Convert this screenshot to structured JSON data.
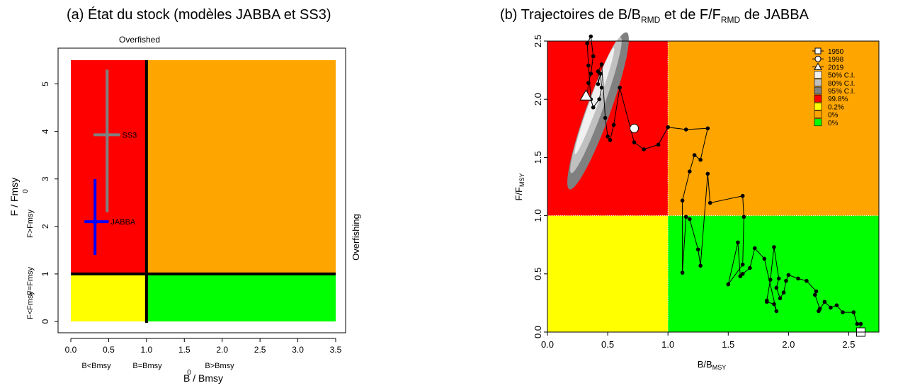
{
  "chart_data": [
    {
      "type": "scatter",
      "panel": "a",
      "title": "(a) État du stock (modèles JABBA et SS3)",
      "xlabel": "B / Bmsy",
      "ylabel": "F / Fmsy",
      "xlim": [
        0,
        3.5
      ],
      "ylim": [
        0,
        5.5
      ],
      "x_ticks": [
        "0.0",
        "0.5",
        "1.0",
        "1.5",
        "2.0",
        "2.5",
        "3.0",
        "3.5"
      ],
      "y_ticks": [
        "0",
        "1",
        "2",
        "3",
        "4",
        "5"
      ],
      "grid": false,
      "top_label": "Overfished",
      "right_label": "Overfishing",
      "x_zone_labels": [
        "B<Bmsy",
        "B=Bmsy",
        "B>Bmsy"
      ],
      "y_zone_labels": [
        "F<Fmsy",
        "F=Fmsy",
        "F>Fmsy"
      ],
      "stray_zero_x": "0",
      "stray_zero_y": "0",
      "quadrants": [
        {
          "x": [
            0,
            1
          ],
          "y": [
            1,
            5.5
          ],
          "color": "#ff0000"
        },
        {
          "x": [
            1,
            3.5
          ],
          "y": [
            1,
            5.5
          ],
          "color": "#ffa500"
        },
        {
          "x": [
            0,
            1
          ],
          "y": [
            0,
            1
          ],
          "color": "#ffff00"
        },
        {
          "x": [
            1,
            3.5
          ],
          "y": [
            0,
            1
          ],
          "color": "#00ff00"
        }
      ],
      "reference_lines": {
        "x": 1,
        "y": 1
      },
      "points": [
        {
          "label": "SS3",
          "x": 0.48,
          "y": 3.93,
          "x_ci": [
            0.3,
            0.65
          ],
          "y_ci": [
            2.3,
            5.3
          ],
          "color": "#808080"
        },
        {
          "label": "JABBA",
          "x": 0.32,
          "y": 2.1,
          "x_ci": [
            0.18,
            0.5
          ],
          "y_ci": [
            1.4,
            3.0
          ],
          "color": "#0000ff"
        }
      ]
    },
    {
      "type": "line",
      "panel": "b",
      "title": "(b) Trajectoires de B/B",
      "title_sub1": "RMD",
      "title_mid": " et de F/F",
      "title_sub2": "RMD",
      "title_end": " de JABBA",
      "xlabel": "B/B",
      "xlabel_sub": "MSY",
      "ylabel": "F/F",
      "ylabel_sub": "MSY",
      "xlim": [
        0,
        2.75
      ],
      "ylim": [
        0,
        2.5
      ],
      "x_ticks": [
        "0.0",
        "0.5",
        "1.0",
        "1.5",
        "2.0",
        "2.5"
      ],
      "y_ticks": [
        "0.0",
        "0.5",
        "1.0",
        "1.5",
        "2.0",
        "2.5"
      ],
      "grid": false,
      "legend_position": "top-right",
      "legend": [
        {
          "label": "1950",
          "marker": "square-line"
        },
        {
          "label": "1998",
          "marker": "circle-line"
        },
        {
          "label": "2019",
          "marker": "triangle-line"
        },
        {
          "label": "50% C.I.",
          "color": "#f0f0f0"
        },
        {
          "label": "80% C.I.",
          "color": "#c0c0c0"
        },
        {
          "label": "95% C.I.",
          "color": "#808080"
        },
        {
          "label": "99.8%",
          "color": "#ff0000"
        },
        {
          "label": "0.2%",
          "color": "#ffff00"
        },
        {
          "label": "0%",
          "color": "#ffa500"
        },
        {
          "label": "0%",
          "color": "#00ff00"
        }
      ],
      "quadrants": [
        {
          "x": [
            0,
            1
          ],
          "y": [
            1,
            2.5
          ],
          "color": "#ff0000"
        },
        {
          "x": [
            1,
            2.75
          ],
          "y": [
            1,
            2.5
          ],
          "color": "#ffa500"
        },
        {
          "x": [
            0,
            1
          ],
          "y": [
            0,
            1
          ],
          "color": "#ffff00"
        },
        {
          "x": [
            1,
            2.75
          ],
          "y": [
            0,
            1
          ],
          "color": "#00ff00"
        }
      ],
      "trajectory": {
        "x": [
          2.58,
          2.6,
          2.57,
          2.54,
          2.45,
          2.4,
          2.35,
          2.3,
          2.25,
          2.26,
          2.22,
          2.23,
          2.15,
          2.08,
          2.0,
          1.98,
          1.96,
          1.93,
          1.9,
          1.92,
          1.88,
          1.85,
          1.82,
          1.82,
          1.88,
          1.9,
          1.8,
          1.72,
          1.68,
          1.62,
          1.6,
          1.58,
          1.5,
          1.62,
          1.63,
          1.62,
          1.35,
          1.33,
          1.27,
          1.25,
          1.18,
          1.15,
          1.12,
          1.12,
          1.18,
          1.22,
          1.27,
          1.33,
          1.15,
          1.0,
          0.92,
          0.8,
          0.72,
          0.6,
          0.55,
          0.52,
          0.5,
          0.48,
          0.45,
          0.42,
          0.42,
          0.44,
          0.45,
          0.43,
          0.38,
          0.36,
          0.34,
          0.33,
          0.36,
          0.38,
          0.36,
          0.34,
          0.33,
          0.32,
          0.33
        ],
        "y": [
          0.0,
          0.07,
          0.07,
          0.17,
          0.17,
          0.23,
          0.21,
          0.26,
          0.18,
          0.2,
          0.32,
          0.35,
          0.44,
          0.46,
          0.49,
          0.44,
          0.34,
          0.29,
          0.38,
          0.46,
          0.73,
          0.45,
          0.27,
          0.26,
          0.24,
          0.18,
          0.63,
          0.72,
          0.55,
          0.5,
          0.48,
          0.77,
          0.41,
          0.58,
          0.99,
          1.17,
          1.11,
          1.36,
          0.57,
          0.71,
          0.97,
          0.99,
          0.51,
          1.13,
          1.38,
          1.52,
          1.48,
          1.75,
          1.74,
          1.76,
          1.61,
          1.57,
          1.63,
          2.1,
          1.78,
          1.65,
          1.68,
          1.84,
          2.3,
          2.24,
          2.13,
          2.22,
          2.1,
          2.0,
          1.93,
          2.0,
          2.29,
          2.48,
          2.54,
          2.37,
          2.22,
          2.14,
          2.03,
          2.03,
          2.03
        ],
        "markers": [
          {
            "label": "1950",
            "x": 2.6,
            "y": 0.0,
            "shape": "square"
          },
          {
            "label": "1998",
            "x": 0.72,
            "y": 1.75,
            "shape": "circle"
          },
          {
            "label": "2019",
            "x": 0.32,
            "y": 2.03,
            "shape": "triangle"
          }
        ]
      }
    }
  ]
}
